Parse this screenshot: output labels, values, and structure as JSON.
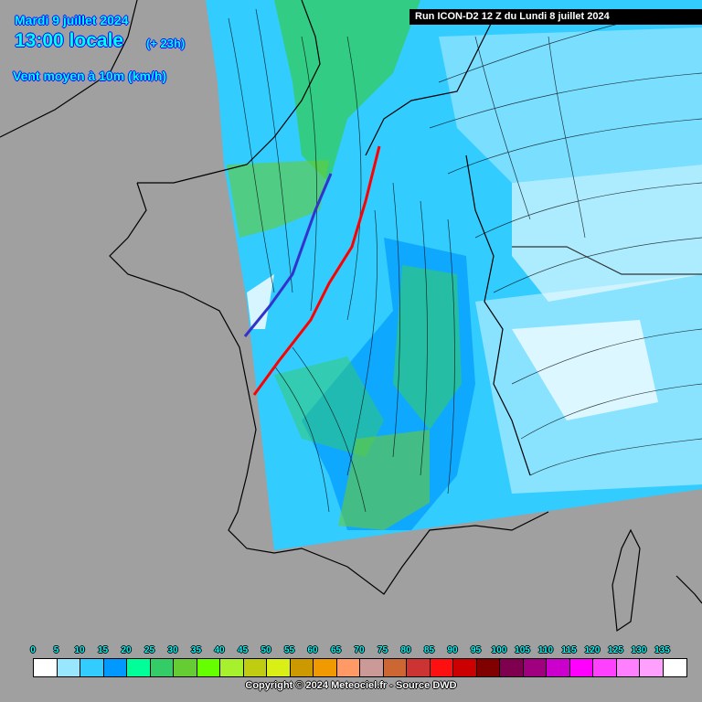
{
  "header": {
    "date": "Mardi 9 juillet 2024",
    "time": "13:00 locale",
    "lead": "(+ 23h)",
    "parameter": "Vent moyen à 10m (km/h)",
    "run": "Run ICON-D2 12 Z du Lundi 8 juillet 2024"
  },
  "legend": {
    "ticks": [
      "0",
      "5",
      "10",
      "15",
      "20",
      "25",
      "30",
      "35",
      "40",
      "45",
      "50",
      "55",
      "60",
      "65",
      "70",
      "75",
      "80",
      "85",
      "90",
      "95",
      "100",
      "105",
      "110",
      "115",
      "120",
      "125",
      "130",
      "135"
    ],
    "colors": [
      "#ffffff",
      "#99e6ff",
      "#33ccff",
      "#0099ff",
      "#00ff99",
      "#33cc66",
      "#66cc33",
      "#66ff00",
      "#a6f02e",
      "#bfcc0f",
      "#d9ef16",
      "#cc9900",
      "#f09a00",
      "#ff9966",
      "#cc9999",
      "#cc6633",
      "#cc3333",
      "#ff1010",
      "#cc0000",
      "#800000",
      "#800050",
      "#a00080",
      "#cc00cc",
      "#ff00ff",
      "#ff40ff",
      "#ff80ff",
      "#ffa0ff",
      "#ffffff"
    ]
  },
  "footer": {
    "copyright": "Copyright © 2024 Meteociel.fr - Source DWD"
  },
  "map": {
    "background_color": "#a0a0a0",
    "front_colors": {
      "warm": "#ff0000",
      "cold": "#3333cc"
    }
  }
}
